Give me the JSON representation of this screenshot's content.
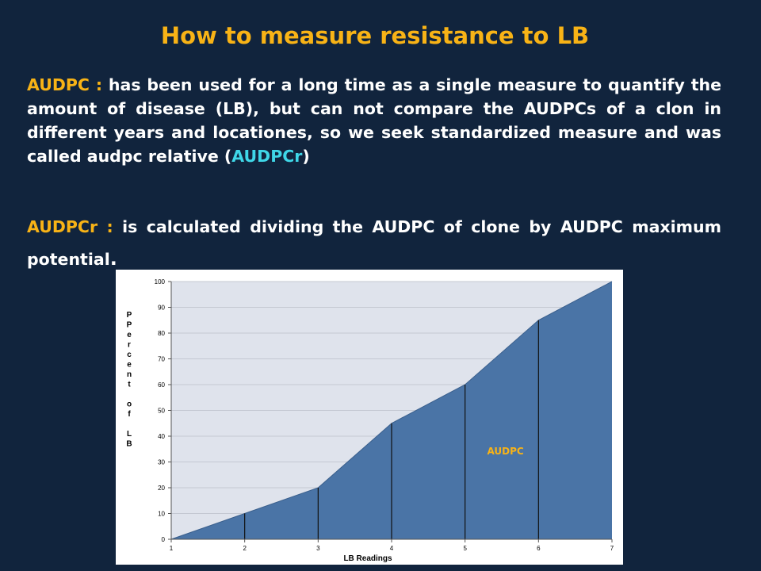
{
  "slide": {
    "title": "How to measure resistance to LB",
    "p1_term": "AUDPC :",
    "p1_text": " has been used for a long time as a single measure to quantify the amount of disease (LB), but can not compare the AUDPCs of a clon in different years and locationes, so we seek standardized measure and was called audpc relative (",
    "p1_highlight": "AUDPCr",
    "p1_end": ")",
    "p2_term": "AUDPCr :",
    "p2_text": " is calculated dividing the AUDPC of clone by  AUDPC maximum potential",
    "p2_end": "."
  },
  "chart_data": {
    "type": "area",
    "x": [
      1,
      2,
      3,
      4,
      5,
      6,
      7
    ],
    "y": [
      0,
      10,
      20,
      45,
      60,
      85,
      100
    ],
    "xlabel": "LB Readings",
    "ylabel": "PPercent of LB",
    "ylabel_lines": [
      "P",
      "P",
      "e",
      "r",
      "c",
      "e",
      "n",
      "t",
      "",
      "o",
      "f",
      "",
      "L",
      "B"
    ],
    "area_label": "AUDPC",
    "xlim": [
      1,
      7
    ],
    "ylim": [
      0,
      100
    ],
    "yticks": [
      0,
      10,
      20,
      30,
      40,
      50,
      60,
      70,
      80,
      90,
      100
    ],
    "xticks": [
      1,
      2,
      3,
      4,
      5,
      6,
      7
    ],
    "fill_color": "#4a74a6",
    "plot_bg": "#dfe3ec",
    "grid": true
  }
}
